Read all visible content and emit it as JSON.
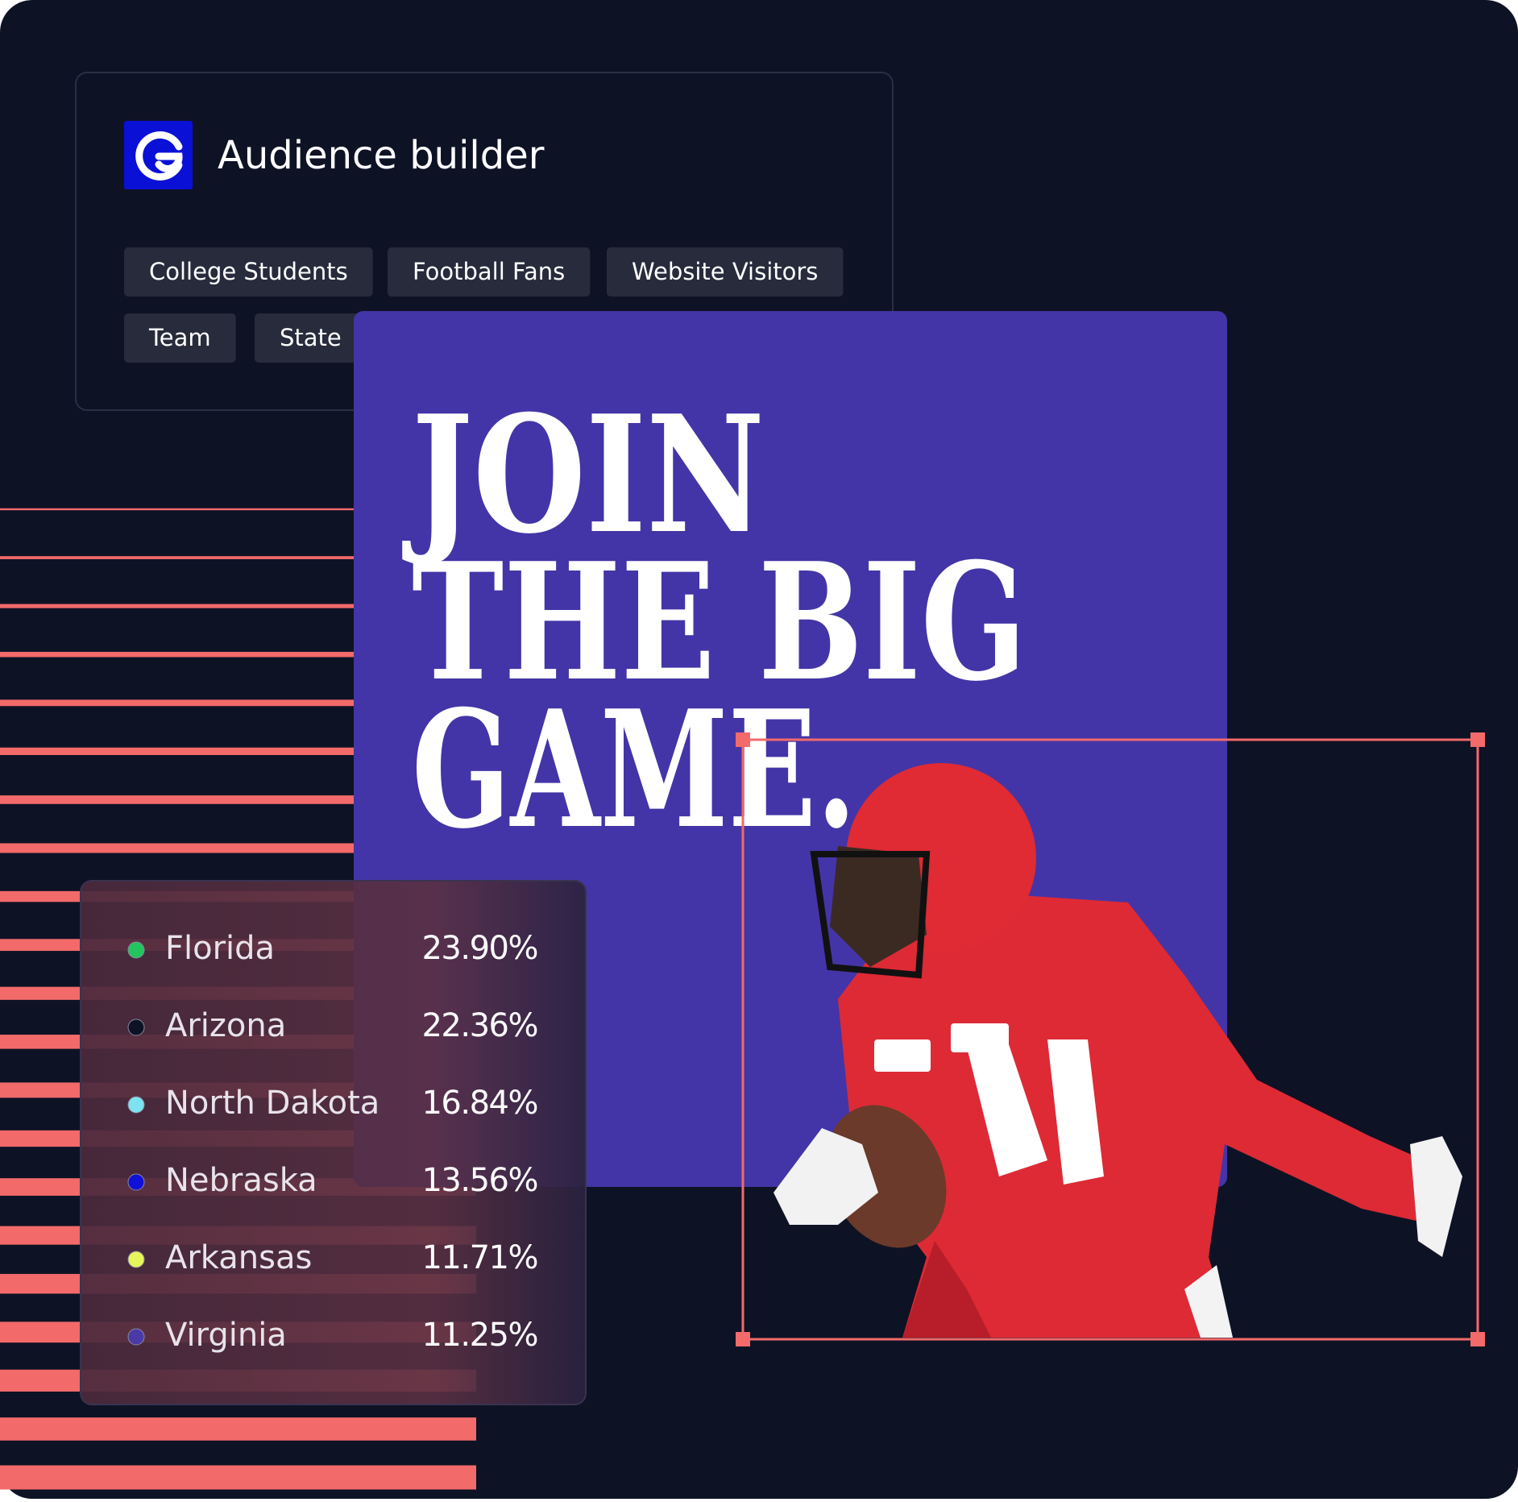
{
  "header": {
    "title": "Audience builder"
  },
  "tags": [
    "College Students",
    "Football Fans",
    "Website Visitors",
    "Team",
    "State"
  ],
  "headline": [
    "JOIN",
    "THE BIG",
    "GAME."
  ],
  "states": [
    {
      "name": "Florida",
      "share": "23.90%",
      "color": "#22c55e"
    },
    {
      "name": "Arizona",
      "share": "22.36%",
      "color": "#0e1225"
    },
    {
      "name": "North Dakota",
      "share": "16.84%",
      "color": "#7ee3f0"
    },
    {
      "name": "Nebraska",
      "share": "13.56%",
      "color": "#1010d8"
    },
    {
      "name": "Arkansas",
      "share": "11.71%",
      "color": "#e8f55a"
    },
    {
      "name": "Virginia",
      "share": "11.25%",
      "color": "#4a3aa8"
    }
  ]
}
